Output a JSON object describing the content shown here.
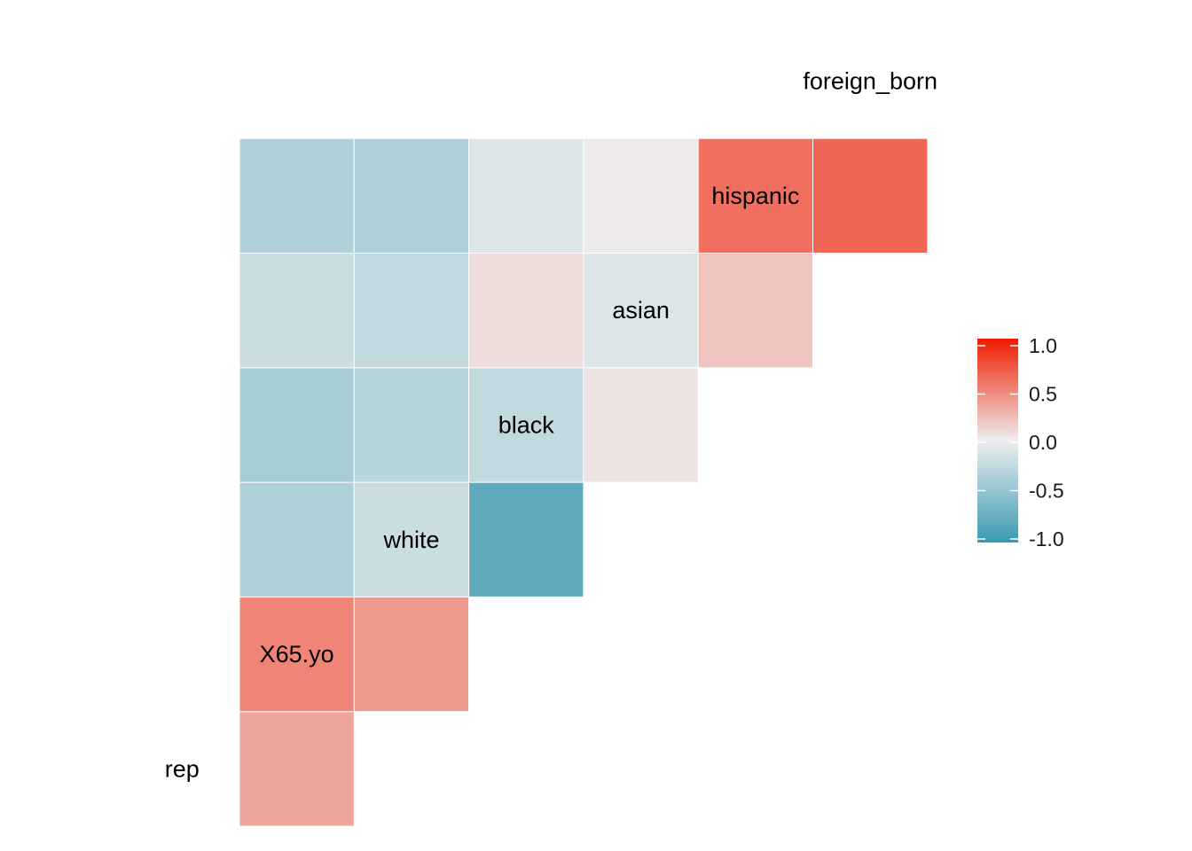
{
  "chart_data": {
    "type": "heatmap",
    "title": "",
    "variables": [
      "rep",
      "X65.yo",
      "white",
      "black",
      "asian",
      "hispanic",
      "foreign_born"
    ],
    "cells": [
      {
        "row": "X65.yo",
        "col": "rep",
        "value": 0.35
      },
      {
        "row": "white",
        "col": "rep",
        "value": 0.5
      },
      {
        "row": "white",
        "col": "X65.yo",
        "value": 0.4
      },
      {
        "row": "black",
        "col": "rep",
        "value": -0.35
      },
      {
        "row": "black",
        "col": "X65.yo",
        "value": -0.2
      },
      {
        "row": "black",
        "col": "white",
        "value": -0.8
      },
      {
        "row": "asian",
        "col": "rep",
        "value": -0.4
      },
      {
        "row": "asian",
        "col": "X65.yo",
        "value": -0.3
      },
      {
        "row": "asian",
        "col": "white",
        "value": -0.25
      },
      {
        "row": "asian",
        "col": "black",
        "value": 0.05
      },
      {
        "row": "hispanic",
        "col": "rep",
        "value": -0.2
      },
      {
        "row": "hispanic",
        "col": "X65.yo",
        "value": -0.25
      },
      {
        "row": "hispanic",
        "col": "white",
        "value": 0.08
      },
      {
        "row": "hispanic",
        "col": "black",
        "value": -0.1
      },
      {
        "row": "hispanic",
        "col": "asian",
        "value": 0.2
      },
      {
        "row": "foreign_born",
        "col": "rep",
        "value": -0.35
      },
      {
        "row": "foreign_born",
        "col": "X65.yo",
        "value": -0.35
      },
      {
        "row": "foreign_born",
        "col": "white",
        "value": -0.1
      },
      {
        "row": "foreign_born",
        "col": "black",
        "value": 0.02
      },
      {
        "row": "foreign_born",
        "col": "asian",
        "value": 0.6
      },
      {
        "row": "foreign_born",
        "col": "hispanic",
        "value": 0.65
      }
    ],
    "legend": {
      "position": "right",
      "range": [
        -1,
        1
      ],
      "ticks": [
        "1.0",
        "0.5",
        "0.0",
        "-0.5",
        "-1.0"
      ],
      "colors": {
        "low": "#3A9AB2",
        "mid": "#EEEEEE",
        "high": "#F11B00"
      }
    },
    "grid": false
  }
}
